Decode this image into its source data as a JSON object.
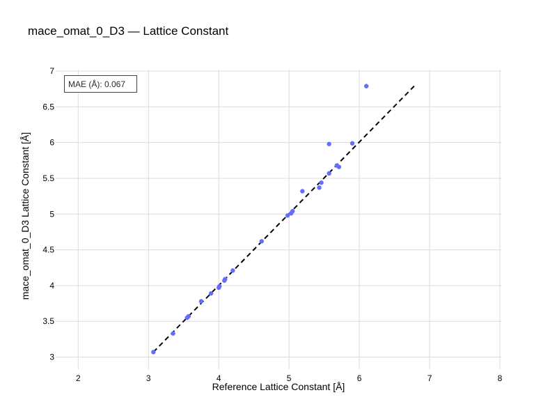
{
  "chart_data": {
    "type": "scatter",
    "title": "mace_omat_0_D3 — Lattice Constant",
    "xlabel": "Reference Lattice Constant [Å]",
    "ylabel": "mace_omat_0_D3 Lattice Constant [Å]",
    "xlim": [
      1.68,
      8.02
    ],
    "ylim": [
      2.83,
      7.02
    ],
    "xticks": [
      2,
      3,
      4,
      5,
      6,
      7,
      8
    ],
    "yticks": [
      3,
      3.5,
      4,
      4.5,
      5,
      5.5,
      6,
      6.5,
      7
    ],
    "xtick_labels": [
      "2",
      "3",
      "4",
      "5",
      "6",
      "7",
      "8"
    ],
    "ytick_labels": [
      "3",
      "3.5",
      "4",
      "4.5",
      "5",
      "5.5",
      "6",
      "6.5",
      "7"
    ],
    "grid": true,
    "annotation": "MAE (Å): 0.067",
    "reference_line": {
      "from": [
        3.07,
        3.07
      ],
      "to": [
        6.78,
        6.79
      ],
      "style": "dashed",
      "color": "#000000"
    },
    "marker_color": "#636efa",
    "points": [
      {
        "x": 3.07,
        "y": 3.07
      },
      {
        "x": 3.35,
        "y": 3.33
      },
      {
        "x": 3.55,
        "y": 3.55
      },
      {
        "x": 3.57,
        "y": 3.57
      },
      {
        "x": 3.75,
        "y": 3.78
      },
      {
        "x": 3.89,
        "y": 3.89
      },
      {
        "x": 4.0,
        "y": 3.97
      },
      {
        "x": 4.01,
        "y": 3.99
      },
      {
        "x": 4.08,
        "y": 4.07
      },
      {
        "x": 4.09,
        "y": 4.09
      },
      {
        "x": 4.2,
        "y": 4.21
      },
      {
        "x": 4.61,
        "y": 4.62
      },
      {
        "x": 4.98,
        "y": 4.98
      },
      {
        "x": 5.03,
        "y": 5.01
      },
      {
        "x": 5.05,
        "y": 5.04
      },
      {
        "x": 5.19,
        "y": 5.32
      },
      {
        "x": 5.43,
        "y": 5.37
      },
      {
        "x": 5.46,
        "y": 5.44
      },
      {
        "x": 5.57,
        "y": 5.57
      },
      {
        "x": 5.57,
        "y": 5.98
      },
      {
        "x": 5.68,
        "y": 5.68
      },
      {
        "x": 5.71,
        "y": 5.66
      },
      {
        "x": 5.9,
        "y": 5.99
      },
      {
        "x": 6.1,
        "y": 6.79
      }
    ]
  }
}
